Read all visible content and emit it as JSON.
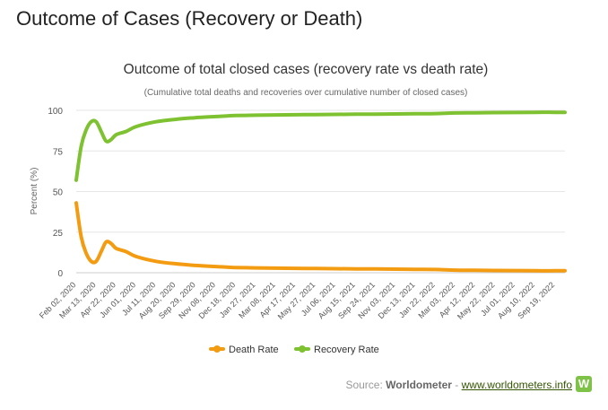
{
  "page": {
    "heading": "Outcome of Cases (Recovery or Death)"
  },
  "source": {
    "label": "Source:",
    "publisher": "Worldometer",
    "separator": "-",
    "link_text": "www.worldometers.info",
    "logo_letter": "W"
  },
  "chart_data": {
    "type": "line",
    "title": "Outcome of total closed cases (recovery rate vs death rate)",
    "subtitle": "(Cumulative total deaths and recoveries over cumulative number of closed cases)",
    "xlabel": "",
    "ylabel": "Percent (%)",
    "ylim": [
      0,
      100
    ],
    "yticks": [
      0,
      25,
      50,
      75,
      100
    ],
    "grid": true,
    "legend_position": "bottom",
    "x_tick_labels": [
      "Feb 02, 2020",
      "Mar 13, 2020",
      "Apr 22, 2020",
      "Jun 01, 2020",
      "Jul 11, 2020",
      "Aug 20, 2020",
      "Sep 29, 2020",
      "Nov 08, 2020",
      "Dec 18, 2020",
      "Jan 27, 2021",
      "Mar 08, 2021",
      "Apr 17, 2021",
      "May 27, 2021",
      "Jul 06, 2021",
      "Aug 15, 2021",
      "Sep 24, 2021",
      "Nov 03, 2021",
      "Dec 13, 2021",
      "Jan 22, 2022",
      "Mar 03, 2022",
      "Apr 12, 2022",
      "May 22, 2022",
      "Jul 01, 2022",
      "Aug 10, 2022",
      "Sep 19, 2022"
    ],
    "x": [
      "Feb 02, 2020",
      "Feb 12, 2020",
      "Feb 22, 2020",
      "Mar 03, 2020",
      "Mar 13, 2020",
      "Mar 23, 2020",
      "Apr 02, 2020",
      "Apr 12, 2020",
      "Apr 22, 2020",
      "May 12, 2020",
      "Jun 01, 2020",
      "Jul 11, 2020",
      "Aug 20, 2020",
      "Sep 29, 2020",
      "Nov 08, 2020",
      "Dec 18, 2020",
      "Jan 27, 2021",
      "Mar 08, 2021",
      "Apr 17, 2021",
      "May 27, 2021",
      "Jul 06, 2021",
      "Aug 15, 2021",
      "Sep 24, 2021",
      "Nov 03, 2021",
      "Dec 13, 2021",
      "Jan 22, 2022",
      "Mar 03, 2022",
      "Apr 12, 2022",
      "May 22, 2022",
      "Jul 01, 2022",
      "Aug 10, 2022",
      "Sep 19, 2022",
      "Oct 09, 2022"
    ],
    "series": [
      {
        "name": "Death Rate",
        "color": "#f39c12",
        "values": [
          43,
          22,
          12,
          7,
          7,
          13,
          19,
          18,
          15,
          13,
          10,
          7,
          5.5,
          4.5,
          3.8,
          3.2,
          3,
          2.8,
          2.7,
          2.6,
          2.5,
          2.4,
          2.3,
          2.2,
          2.1,
          2,
          1.6,
          1.5,
          1.4,
          1.3,
          1.2,
          1.2,
          1.2
        ]
      },
      {
        "name": "Recovery Rate",
        "color": "#7ec231",
        "values": [
          57,
          78,
          88,
          93,
          93,
          87,
          81,
          82,
          85,
          87,
          90,
          93,
          94.5,
          95.5,
          96.2,
          96.8,
          97,
          97.2,
          97.3,
          97.4,
          97.5,
          97.6,
          97.7,
          97.8,
          97.9,
          98,
          98.4,
          98.5,
          98.6,
          98.7,
          98.8,
          98.8,
          98.8
        ]
      }
    ]
  }
}
